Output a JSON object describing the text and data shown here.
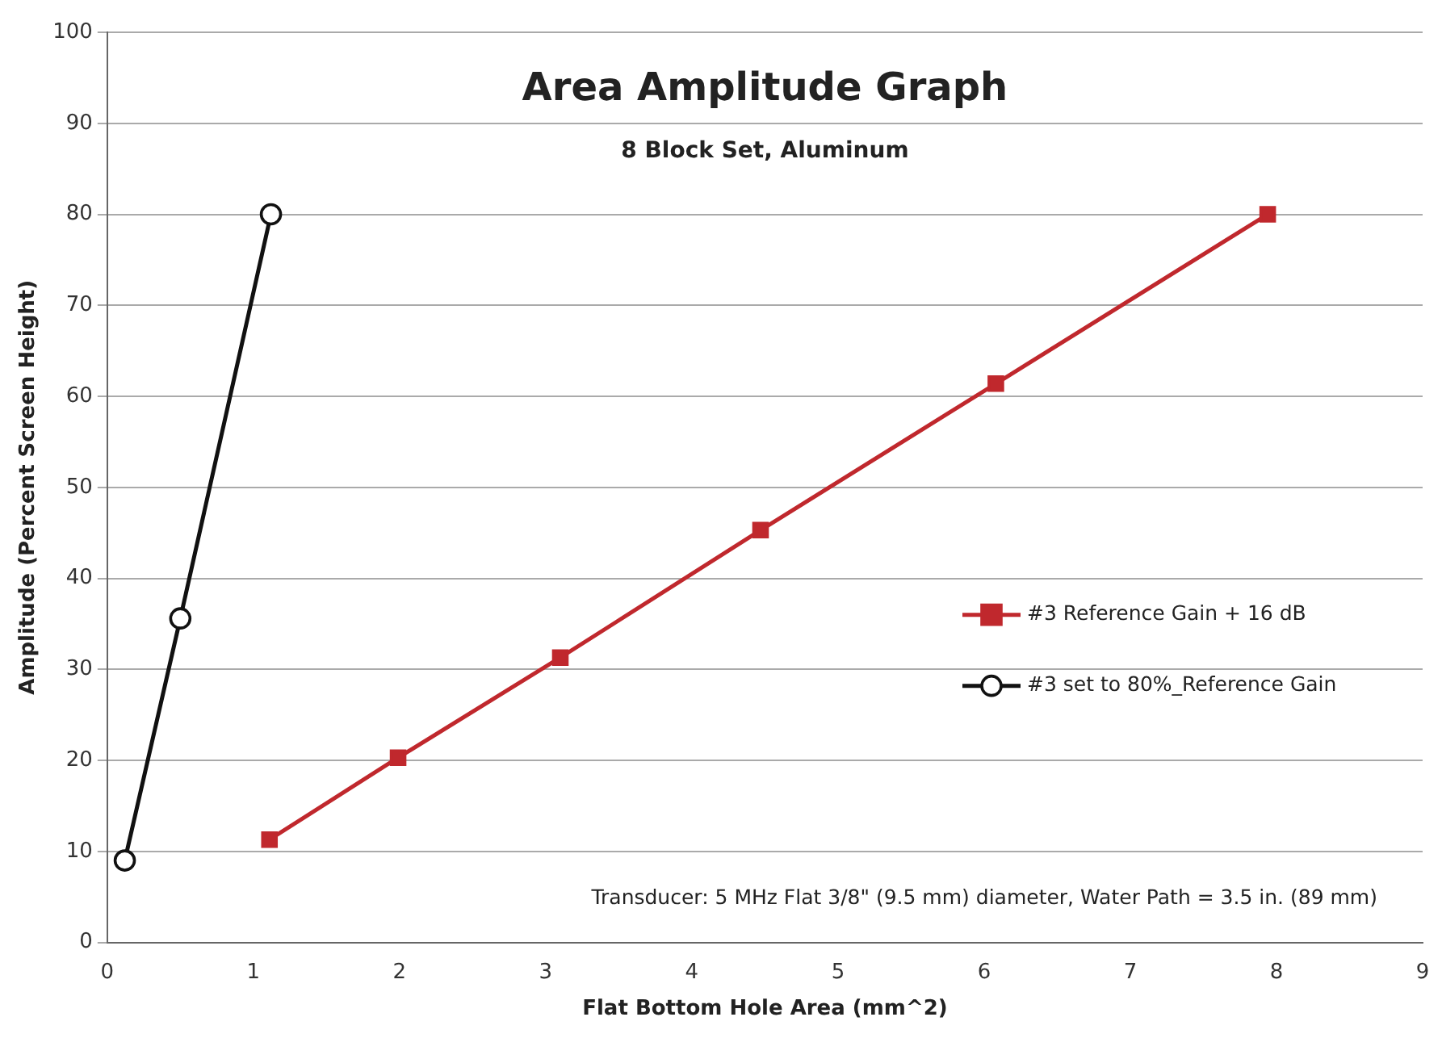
{
  "chart_data": {
    "type": "line",
    "title": "Area Amplitude Graph",
    "subtitle": "8 Block Set, Aluminum",
    "xlabel": "Flat Bottom Hole Area (mm^2)",
    "ylabel": "Amplitude (Percent Screen Height)",
    "xlim": [
      0,
      9
    ],
    "xticks": [
      0,
      1,
      2,
      3,
      4,
      5,
      6,
      7,
      8,
      9
    ],
    "ylim": [
      0,
      100
    ],
    "yticks": [
      0,
      10,
      20,
      30,
      40,
      50,
      60,
      70,
      80,
      90,
      100
    ],
    "grid": "y",
    "legend": "right",
    "line_style": "solid",
    "annotations": [
      "Transducer: 5 MHz Flat 3/8\" (9.5 mm) diameter, Water Path = 3.5 in. (89 mm)"
    ],
    "series": [
      {
        "name": "#3 Reference Gain + 16 dB",
        "color": "#c0282d",
        "marker": "square",
        "x": [
          1.11,
          1.99,
          3.1,
          4.47,
          6.08,
          7.94
        ],
        "values": [
          11.3,
          20.3,
          31.3,
          45.3,
          61.4,
          80
        ]
      },
      {
        "name": "#3 set to 80%_Reference Gain",
        "color": "#111111",
        "marker": "circle",
        "x": [
          0.12,
          0.5,
          1.12
        ],
        "values": [
          9,
          35.6,
          80
        ]
      }
    ]
  }
}
